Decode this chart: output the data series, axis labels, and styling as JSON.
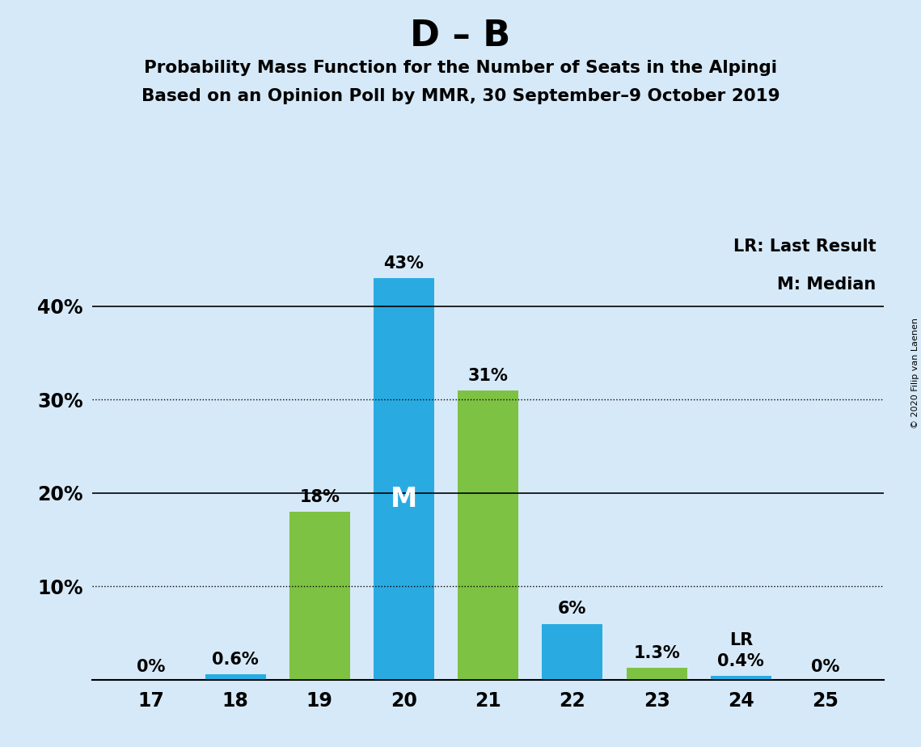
{
  "title_main": "D – B",
  "subtitle1": "Probability Mass Function for the Number of Seats in the Alpingi",
  "subtitle2": "Based on an Opinion Poll by MMR, 30 September–9 October 2019",
  "copyright": "© 2020 Filip van Laenen",
  "seats": [
    17,
    18,
    19,
    20,
    21,
    22,
    23,
    24,
    25
  ],
  "values": [
    0.0,
    0.6,
    18.0,
    43.0,
    31.0,
    6.0,
    1.3,
    0.4,
    0.0
  ],
  "labels": [
    "0%",
    "0.6%",
    "18%",
    "43%",
    "31%",
    "6%",
    "1.3%",
    "0.4%",
    "0%"
  ],
  "bar_colors": [
    "#29ABE2",
    "#29ABE2",
    "#7DC242",
    "#29ABE2",
    "#7DC242",
    "#29ABE2",
    "#7DC242",
    "#29ABE2",
    "#29ABE2"
  ],
  "median_seat": 20,
  "lr_seat": 24,
  "legend_text1": "LR: Last Result",
  "legend_text2": "M: Median",
  "median_label": "M",
  "lr_label": "LR",
  "background_color": "#D6E9F8",
  "bar_area_bg": "#D6E9F8",
  "yticks": [
    0,
    10,
    20,
    30,
    40
  ],
  "solid_grid": [
    0,
    20,
    40
  ],
  "dotted_grid": [
    10,
    30
  ],
  "ylim": [
    0,
    48
  ],
  "xlim": [
    16.3,
    25.7
  ]
}
